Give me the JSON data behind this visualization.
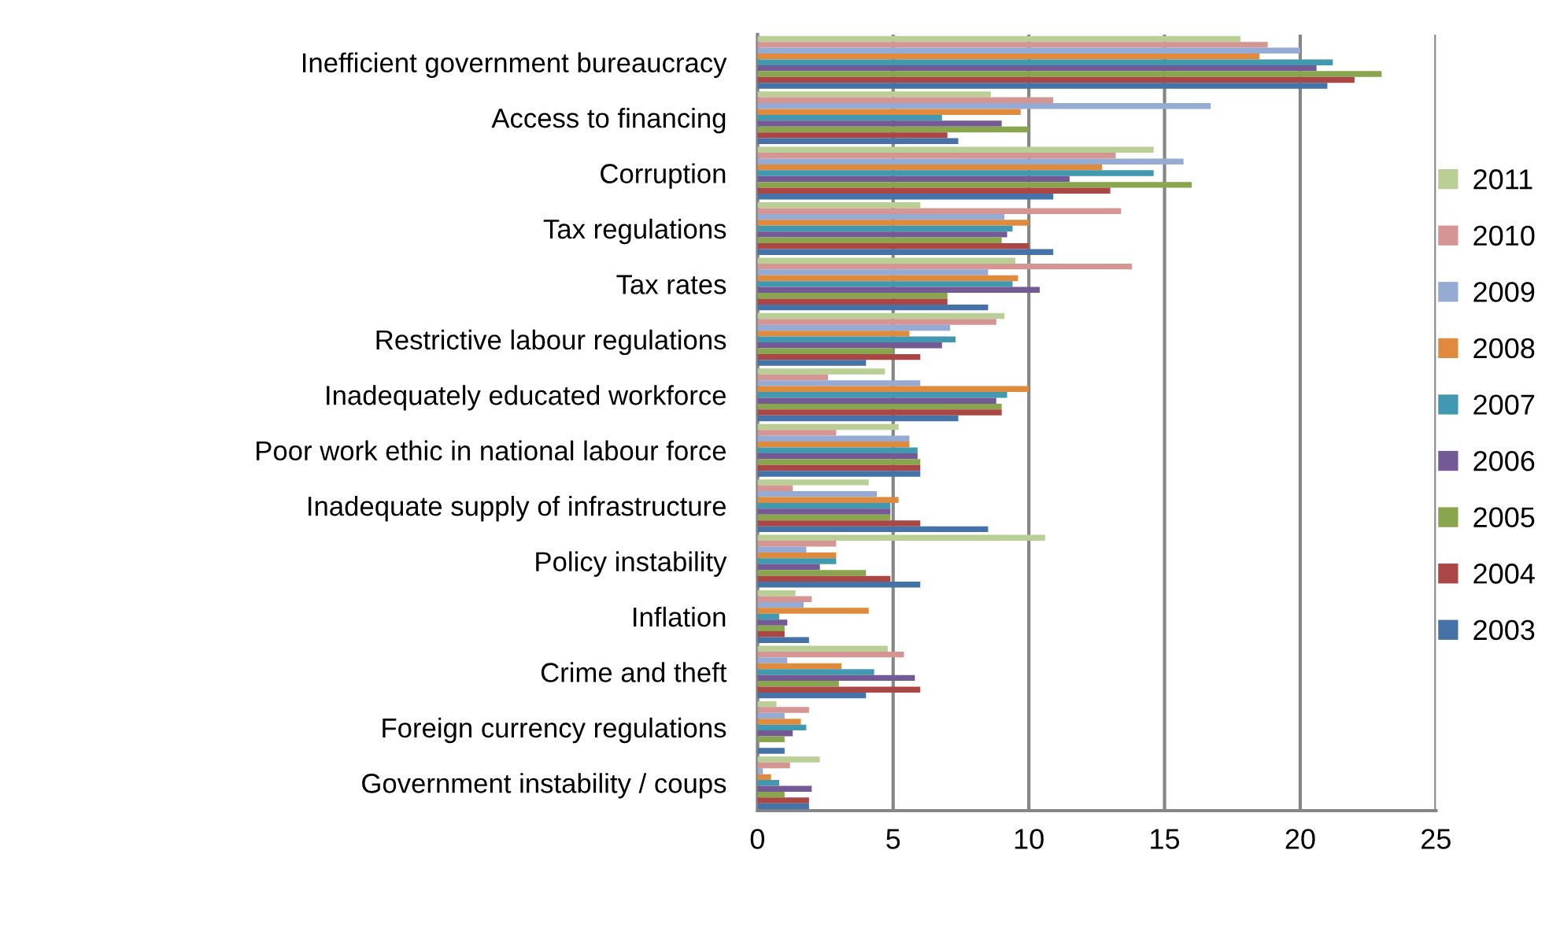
{
  "chart_data": {
    "type": "bar",
    "orientation": "horizontal",
    "categories": [
      "Inefficient government bureaucracy",
      "Access to financing",
      "Corruption",
      "Tax regulations",
      "Tax rates",
      "Restrictive labour regulations",
      "Inadequately educated workforce",
      "Poor work ethic in national labour force",
      "Inadequate supply of infrastructure",
      "Policy instability",
      "Inflation",
      "Crime and theft",
      "Foreign currency regulations",
      "Government instability / coups"
    ],
    "series": [
      {
        "name": "2011",
        "color": "#b9cf96",
        "values": [
          17.8,
          8.6,
          14.6,
          6.0,
          9.5,
          9.1,
          4.7,
          5.2,
          4.1,
          10.6,
          1.4,
          4.8,
          0.7,
          2.3
        ]
      },
      {
        "name": "2010",
        "color": "#d49593",
        "values": [
          18.8,
          10.9,
          13.2,
          13.4,
          13.8,
          8.8,
          2.6,
          2.9,
          1.3,
          2.9,
          2.0,
          5.4,
          1.9,
          1.2
        ]
      },
      {
        "name": "2009",
        "color": "#95abd3",
        "values": [
          20.0,
          16.7,
          15.7,
          9.1,
          8.5,
          7.1,
          6.0,
          5.6,
          4.4,
          1.8,
          1.7,
          1.1,
          1.0,
          0.2
        ]
      },
      {
        "name": "2008",
        "color": "#e08a3d",
        "values": [
          18.5,
          9.7,
          12.7,
          10.0,
          9.6,
          5.6,
          10.0,
          5.6,
          5.2,
          2.9,
          4.1,
          3.1,
          1.6,
          0.5
        ]
      },
      {
        "name": "2007",
        "color": "#4199b0",
        "values": [
          21.2,
          6.8,
          14.6,
          9.4,
          9.4,
          7.3,
          9.2,
          5.9,
          4.9,
          2.9,
          0.8,
          4.3,
          1.8,
          0.8
        ]
      },
      {
        "name": "2006",
        "color": "#735a94",
        "values": [
          20.6,
          9.0,
          11.5,
          9.2,
          10.4,
          6.8,
          8.8,
          5.9,
          4.9,
          2.3,
          1.1,
          5.8,
          1.3,
          2.0
        ]
      },
      {
        "name": "2005",
        "color": "#89a54e",
        "values": [
          23.0,
          10.0,
          16.0,
          9.0,
          7.0,
          5.0,
          9.0,
          6.0,
          4.9,
          4.0,
          1.0,
          3.0,
          1.0,
          1.0
        ]
      },
      {
        "name": "2004",
        "color": "#aa4643",
        "values": [
          22.0,
          7.0,
          13.0,
          10.0,
          7.0,
          6.0,
          9.0,
          6.0,
          6.0,
          4.9,
          1.0,
          6.0,
          null,
          1.9
        ]
      },
      {
        "name": "2003",
        "color": "#4572a7",
        "values": [
          21.0,
          7.4,
          10.9,
          10.9,
          8.5,
          4.0,
          7.4,
          6.0,
          8.5,
          6.0,
          1.9,
          4.0,
          1.0,
          1.9
        ]
      }
    ],
    "xlim": [
      0,
      25
    ],
    "xticks": [
      0,
      5,
      10,
      15,
      20,
      25
    ],
    "grid": "x",
    "legend": "right"
  }
}
